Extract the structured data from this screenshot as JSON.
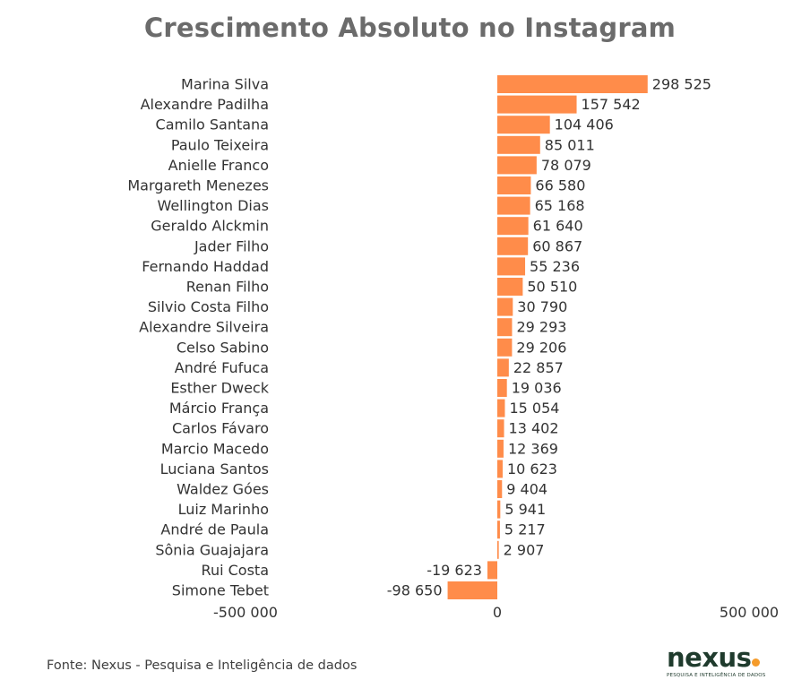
{
  "chart_data": {
    "type": "bar",
    "orientation": "horizontal",
    "title": "Crescimento Absoluto no Instagram",
    "categories": [
      "Marina Silva",
      "Alexandre Padilha",
      "Camilo Santana",
      "Paulo Teixeira",
      "Anielle Franco",
      "Margareth Menezes",
      "Wellington Dias",
      "Geraldo Alckmin",
      "Jader Filho",
      "Fernando Haddad",
      "Renan Filho",
      "Silvio Costa Filho",
      "Alexandre Silveira",
      "Celso Sabino",
      "André Fufuca",
      "Esther Dweck",
      "Márcio França",
      "Carlos Fávaro",
      "Marcio Macedo",
      "Luciana Santos",
      "Waldez Góes",
      "Luiz Marinho",
      "André de Paula",
      "Sônia Guajajara",
      "Rui Costa",
      "Simone Tebet"
    ],
    "values": [
      298525,
      157542,
      104406,
      85011,
      78079,
      66580,
      65168,
      61640,
      60867,
      55236,
      50510,
      30790,
      29293,
      29206,
      22857,
      19036,
      15054,
      13402,
      12369,
      10623,
      9404,
      5941,
      5217,
      2907,
      -19623,
      -98650
    ],
    "value_labels": [
      "298 525",
      "157 542",
      "104 406",
      "85 011",
      "78 079",
      "66 580",
      "65 168",
      "61 640",
      "60 867",
      "55 236",
      "50 510",
      "30 790",
      "29 293",
      "29 206",
      "22 857",
      "19 036",
      "15 054",
      "13 402",
      "12 369",
      "10 623",
      "9 404",
      "5 941",
      "5 217",
      "2 907",
      "-19 623",
      "-98 650"
    ],
    "xlim": [
      -500000,
      500000
    ],
    "x_ticks": [
      {
        "value": -500000,
        "label": "-500 000"
      },
      {
        "value": 0,
        "label": "0"
      },
      {
        "value": 500000,
        "label": "500 000"
      }
    ],
    "xlabel": "",
    "ylabel": "",
    "grid": false,
    "bar_color": "#ff8c4a"
  },
  "footer": {
    "source": "Fonte: Nexus - Pesquisa e Inteligência de dados"
  },
  "logo": {
    "word": "nexus",
    "tagline": "PESQUISA E INTELIGÊNCIA DE DADOS",
    "dot_color": "#f59b2a"
  }
}
